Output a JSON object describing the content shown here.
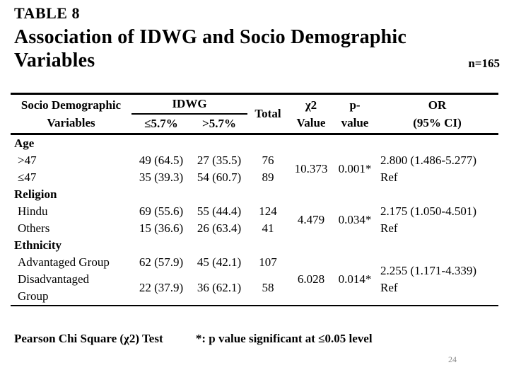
{
  "slide": {
    "pretitle": "TABLE 8",
    "title": "Association of IDWG and Socio Demographic Variables",
    "sample_size": "n=165",
    "page_number": "24"
  },
  "table": {
    "header": {
      "variables_line1": "Socio Demographic",
      "variables_line2": "Variables",
      "idwg": "IDWG",
      "idwg_sub_le": "≤5.7%",
      "idwg_sub_gt": ">5.7%",
      "total": "Total",
      "chi_line1": "χ2",
      "chi_line2": "Value",
      "p_line1": "p-",
      "p_line2": "value",
      "or_line1": "OR",
      "or_line2": "(95% CI)"
    },
    "sections": [
      {
        "label": "Age",
        "rows": [
          {
            "category": ">47",
            "le": "49 (64.5)",
            "gt": "27 (35.5)",
            "total": "76"
          },
          {
            "category": "≤47",
            "le": "35 (39.3)",
            "gt": "54 (60.7)",
            "total": "89"
          }
        ],
        "chi": "10.373",
        "p": "0.001*",
        "or": "2.800 (1.486-5.277)",
        "or_ref": "Ref"
      },
      {
        "label": "Religion",
        "rows": [
          {
            "category": "Hindu",
            "le": "69 (55.6)",
            "gt": "55 (44.4)",
            "total": "124"
          },
          {
            "category": "Others",
            "le": "15 (36.6)",
            "gt": "26 (63.4)",
            "total": "41"
          }
        ],
        "chi": "4.479",
        "p": "0.034*",
        "or": "2.175 (1.050-4.501)",
        "or_ref": "Ref"
      },
      {
        "label": "Ethnicity",
        "rows": [
          {
            "category": "Advantaged Group",
            "le": "62 (57.9)",
            "gt": "45 (42.1)",
            "total": "107"
          },
          {
            "category": "Disadvantaged\nGroup",
            "le": "22 (37.9)",
            "gt": "36 (62.1)",
            "total": "58"
          }
        ],
        "chi": "6.028",
        "p": "0.014*",
        "or": "2.255 (1.171-4.339)",
        "or_ref": "Ref"
      }
    ]
  },
  "footer": {
    "note1": "Pearson Chi Square (χ2) Test",
    "note2": "*: p value significant at ≤0.05 level"
  }
}
